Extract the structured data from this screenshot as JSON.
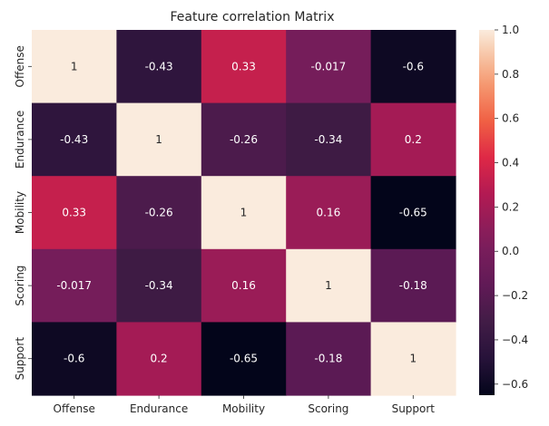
{
  "chart_data": {
    "type": "heatmap",
    "title": "Feature correlation Matrix",
    "x_labels": [
      "Offense",
      "Endurance",
      "Mobility",
      "Scoring",
      "Support"
    ],
    "y_labels": [
      "Offense",
      "Endurance",
      "Mobility",
      "Scoring",
      "Support"
    ],
    "values": [
      [
        1,
        -0.43,
        0.33,
        -0.017,
        -0.6
      ],
      [
        -0.43,
        1,
        -0.26,
        -0.34,
        0.2
      ],
      [
        0.33,
        -0.26,
        1,
        0.16,
        -0.65
      ],
      [
        -0.017,
        -0.34,
        0.16,
        1,
        -0.18
      ],
      [
        -0.6,
        0.2,
        -0.65,
        -0.18,
        1
      ]
    ],
    "annotations": [
      [
        "1",
        "-0.43",
        "0.33",
        "-0.017",
        "-0.6"
      ],
      [
        "-0.43",
        "1",
        "-0.26",
        "-0.34",
        "0.2"
      ],
      [
        "0.33",
        "-0.26",
        "1",
        "0.16",
        "-0.65"
      ],
      [
        "-0.017",
        "-0.34",
        "0.16",
        "1",
        "-0.18"
      ],
      [
        "-0.6",
        "0.2",
        "-0.65",
        "-0.18",
        "1"
      ]
    ],
    "vmin": -0.65,
    "vmax": 1,
    "colormap": "rocket",
    "colorbar": {
      "ticks": [
        1.0,
        0.8,
        0.6,
        0.4,
        0.2,
        0.0,
        -0.2,
        -0.4,
        -0.6
      ],
      "tick_labels": [
        "1.0",
        "0.8",
        "0.6",
        "0.4",
        "0.2",
        "0.0",
        "−0.2",
        "−0.4",
        "−0.6"
      ]
    }
  }
}
